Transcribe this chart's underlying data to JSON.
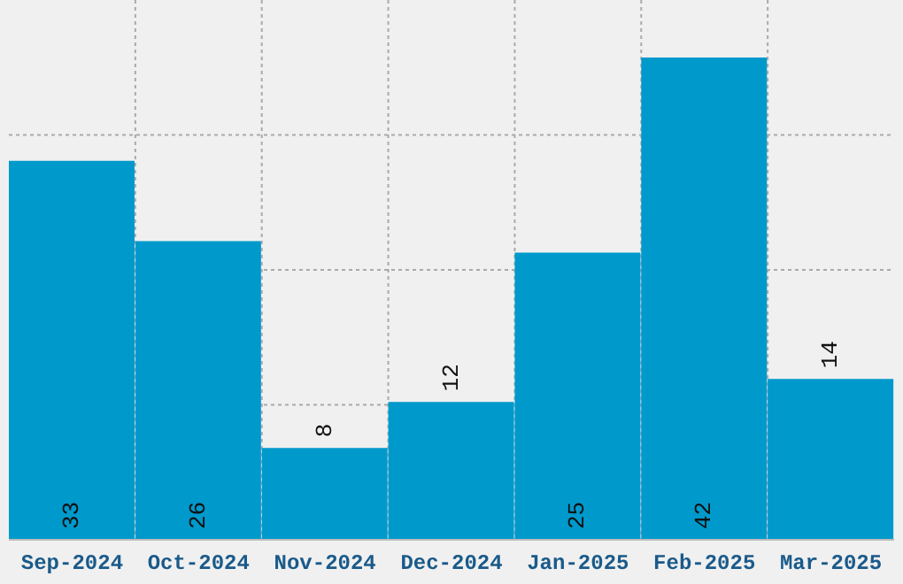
{
  "chart_data": {
    "type": "bar",
    "categories": [
      "Sep-2024",
      "Oct-2024",
      "Nov-2024",
      "Dec-2024",
      "Jan-2025",
      "Feb-2025",
      "Mar-2025"
    ],
    "values": [
      33,
      26,
      8,
      12,
      25,
      42,
      14
    ],
    "color": "#0099cc",
    "data_labels": true,
    "ylim": [
      0,
      47
    ],
    "yticks": [
      {
        "value": 11.75,
        "label": null
      },
      {
        "value": 23.5,
        "label": null
      },
      {
        "value": 35.25,
        "label": null
      }
    ],
    "tick_labels": "x",
    "grid": true
  }
}
